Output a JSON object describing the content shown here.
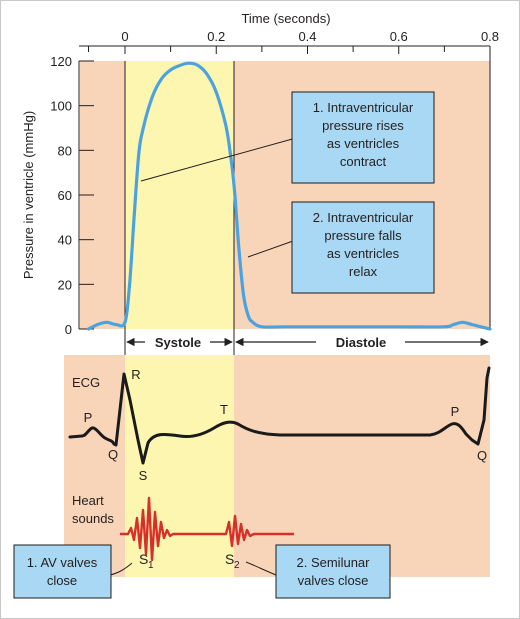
{
  "colors": {
    "diastole_bg": "#f8d5b8",
    "systole_bg": "#fdf6b0",
    "pressure_line": "#4aa3df",
    "ecg_line": "#1a1a1a",
    "heart_sound_line": "#d7302a",
    "callout_fill": "#a8d8f3",
    "callout_border": "#1d1d1b",
    "grid_line": "#231f20"
  },
  "x_axis": {
    "title": "Time (seconds)",
    "ticks": [
      "0",
      "0.2",
      "0.4",
      "0.6",
      "0.8"
    ]
  },
  "y_axis": {
    "title": "Pressure in ventricle (mmHg)",
    "ticks": [
      "0",
      "20",
      "40",
      "60",
      "80",
      "100",
      "120"
    ]
  },
  "phases": {
    "systole": "Systole",
    "diastole": "Diastole"
  },
  "callouts": {
    "rise": [
      "1. Intraventricular",
      "pressure rises",
      "as ventricles",
      "contract"
    ],
    "fall": [
      "2. Intraventricular",
      "pressure falls",
      "as ventricles",
      "relax"
    ],
    "av": [
      "1. AV valves",
      "close"
    ],
    "semilunar": [
      "2. Semilunar",
      "valves close"
    ]
  },
  "ecg": {
    "title": "ECG",
    "wave_labels": {
      "p1": "P",
      "q1": "Q",
      "r": "R",
      "s": "S",
      "t": "T",
      "p2": "P",
      "q2": "Q"
    }
  },
  "heart_sounds": {
    "title": [
      "Heart",
      "sounds"
    ],
    "s1_base": "S",
    "s1_sub": "1",
    "s2_base": "S",
    "s2_sub": "2"
  },
  "chart_data": {
    "type": "line",
    "title": "",
    "xlabel": "Time (seconds)",
    "ylabel": "Pressure in ventricle (mmHg)",
    "xlim": [
      -0.08,
      0.8
    ],
    "ylim": [
      0,
      120
    ],
    "grid": false,
    "series": [
      {
        "values_note_free": true,
        "x": [
          -0.08,
          -0.06,
          -0.04,
          -0.02,
          0.0,
          0.01,
          0.02,
          0.03,
          0.04,
          0.06,
          0.08,
          0.1,
          0.12,
          0.14,
          0.16,
          0.18,
          0.2,
          0.22,
          0.23,
          0.24,
          0.25,
          0.26,
          0.27,
          0.28,
          0.3,
          0.35,
          0.4,
          0.5,
          0.6,
          0.7,
          0.72,
          0.74,
          0.76,
          0.78,
          0.8
        ],
        "y": [
          0,
          2,
          3,
          2,
          3,
          20,
          50,
          78,
          90,
          104,
          112,
          116,
          118,
          119,
          118,
          114,
          106,
          92,
          80,
          62,
          35,
          15,
          6,
          3,
          1,
          1,
          1,
          1,
          1,
          1,
          2,
          3,
          2,
          1,
          0
        ]
      }
    ]
  }
}
